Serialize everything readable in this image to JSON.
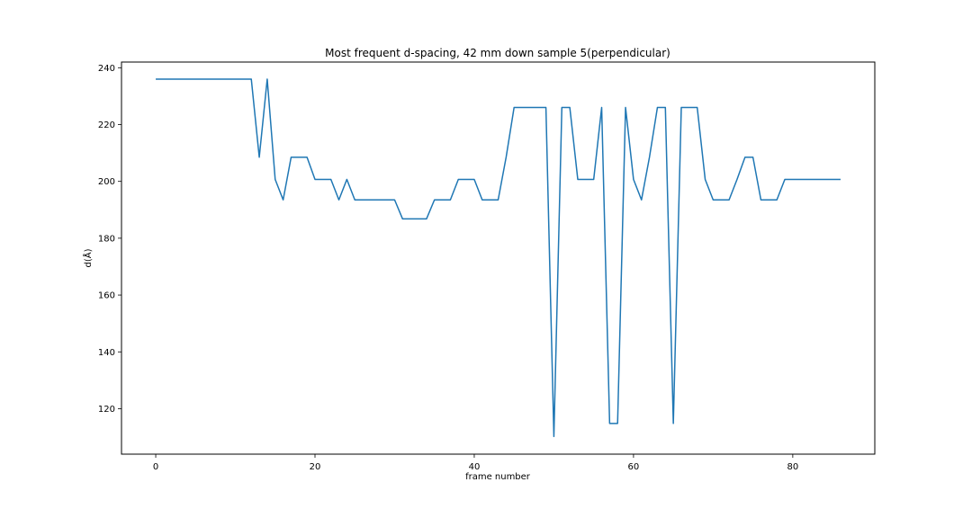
{
  "chart_data": {
    "type": "line",
    "title": "Most frequent d-spacing, 42 mm down sample 5(perpendicular)",
    "xlabel": "frame number",
    "ylabel": "d(Å)",
    "xlim": [
      -4.3,
      90.3
    ],
    "ylim": [
      104,
      242
    ],
    "xticks": [
      0,
      20,
      40,
      60,
      80
    ],
    "yticks": [
      120,
      140,
      160,
      180,
      200,
      220,
      240
    ],
    "grid": false,
    "series": [
      {
        "color": "#1f77b4",
        "x": [
          0,
          1,
          2,
          3,
          4,
          5,
          6,
          7,
          8,
          9,
          10,
          11,
          12,
          13,
          14,
          15,
          16,
          17,
          18,
          19,
          20,
          21,
          22,
          23,
          24,
          25,
          26,
          27,
          28,
          29,
          30,
          31,
          32,
          33,
          34,
          35,
          36,
          37,
          38,
          39,
          40,
          41,
          42,
          43,
          44,
          45,
          46,
          47,
          48,
          49,
          50,
          51,
          52,
          53,
          54,
          55,
          56,
          57,
          58,
          59,
          60,
          61,
          62,
          63,
          64,
          65,
          66,
          67,
          68,
          69,
          70,
          71,
          72,
          73,
          74,
          75,
          76,
          77,
          78,
          79,
          80,
          81,
          82,
          83,
          84,
          85,
          86
        ],
        "y": [
          236,
          236,
          236,
          236,
          236,
          236,
          236,
          236,
          236,
          236,
          236,
          236,
          236,
          208.5,
          236,
          200.7,
          193.5,
          208.5,
          208.5,
          208.5,
          200.7,
          200.7,
          200.7,
          193.5,
          200.7,
          193.5,
          193.5,
          193.5,
          193.5,
          193.5,
          193.5,
          186.8,
          186.8,
          186.8,
          186.8,
          193.5,
          193.5,
          193.5,
          200.7,
          200.7,
          200.7,
          193.5,
          193.5,
          193.5,
          208.5,
          226,
          226,
          226,
          226,
          226,
          110.2,
          226,
          226,
          200.7,
          200.7,
          200.7,
          226,
          114.8,
          114.8,
          226,
          200.7,
          193.5,
          208.5,
          226,
          226,
          114.8,
          226,
          226,
          226,
          200.7,
          193.5,
          193.5,
          193.5,
          200.7,
          208.5,
          208.5,
          193.5,
          193.5,
          193.5,
          200.7,
          200.7,
          200.7,
          200.7,
          200.7,
          200.7,
          200.7,
          200.7
        ]
      }
    ]
  }
}
